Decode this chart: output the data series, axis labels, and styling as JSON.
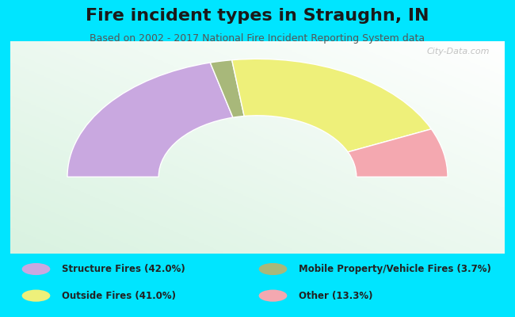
{
  "title": "Fire incident types in Straughn, IN",
  "subtitle": "Based on 2002 - 2017 National Fire Incident Reporting System data",
  "categories": [
    "Structure Fires",
    "Mobile Property/Vehicle Fires",
    "Outside Fires",
    "Other"
  ],
  "values": [
    42.0,
    3.7,
    41.0,
    13.3
  ],
  "colors": [
    "#c9a8e0",
    "#a8b87a",
    "#eef07a",
    "#f4a8b0"
  ],
  "legend_labels_left": [
    "Structure Fires (42.0%)",
    "Outside Fires (41.0%)"
  ],
  "legend_labels_right": [
    "Mobile Property/Vehicle Fires (3.7%)",
    "Other (13.3%)"
  ],
  "legend_colors_left": [
    "#c9a8e0",
    "#eef07a"
  ],
  "legend_colors_right": [
    "#a8b87a",
    "#f4a8b0"
  ],
  "background_outer": "#00e5ff",
  "watermark": "City-Data.com",
  "title_fontsize": 16,
  "subtitle_fontsize": 9,
  "title_color": "#1a1a1a",
  "subtitle_color": "#555555"
}
